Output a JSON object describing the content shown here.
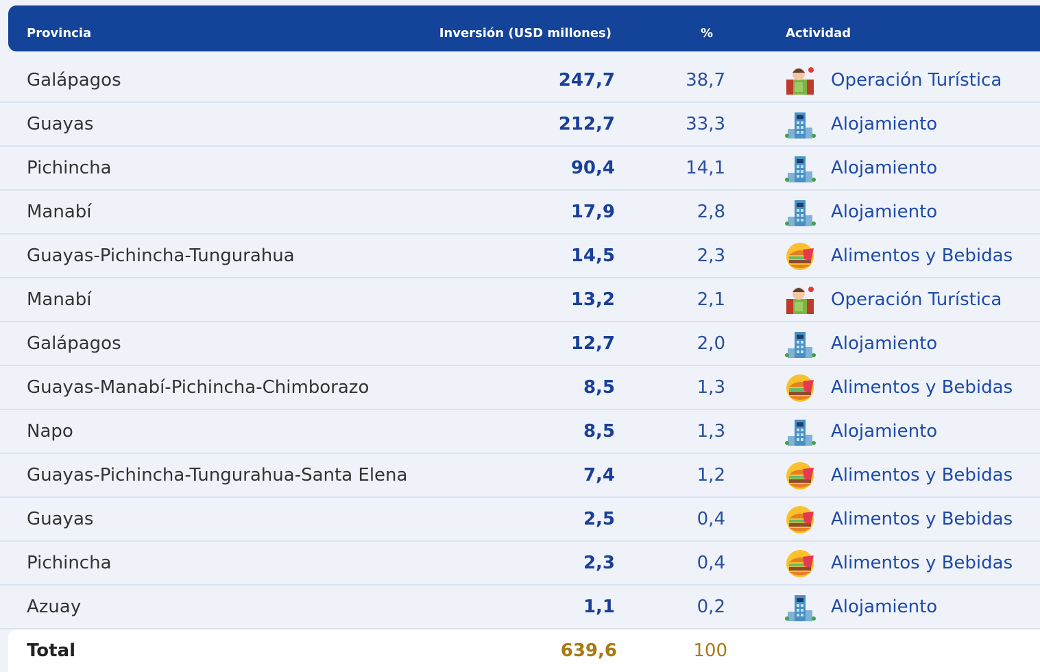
{
  "table": {
    "header": [
      "Provincia",
      "Inversión (USD millones)",
      "%",
      "Actividad"
    ],
    "rows": [
      [
        "Galápagos",
        "247,7",
        "38,7",
        "Operación Turística"
      ],
      [
        "Guayas",
        "212,7",
        "33,3",
        "Alojamiento"
      ],
      [
        "Pichincha",
        "90,4",
        "14,1",
        "Alojamiento"
      ],
      [
        "Manabí",
        "17,9",
        "2,8",
        "Alojamiento"
      ],
      [
        "Guayas-Pichincha-Tungurahua",
        "14,5",
        "2,3",
        "Alimentos y Bebidas"
      ],
      [
        "Manabí",
        "13,2",
        "2,1",
        "Operación Turística"
      ],
      [
        "Galápagos",
        "12,7",
        "2,0",
        "Alojamiento"
      ],
      [
        "Guayas-Manabí-Pichincha-Chimborazo",
        "8,5",
        "1,3",
        "Alimentos y Bebidas"
      ],
      [
        "Napo",
        "8,5",
        "1,3",
        "Alojamiento"
      ],
      [
        "Guayas-Pichincha-Tungurahua-Santa Elena",
        "7,4",
        "1,2",
        "Alimentos y Bebidas"
      ],
      [
        "Guayas",
        "2,5",
        "0,4",
        "Alimentos y Bebidas"
      ],
      [
        "Pichincha",
        "2,3",
        "0,4",
        "Alimentos y Bebidas"
      ],
      [
        "Azuay",
        "1,1",
        "0,2",
        "Alojamiento"
      ]
    ],
    "total": [
      "Total",
      "639,6",
      "100"
    ]
  }
}
